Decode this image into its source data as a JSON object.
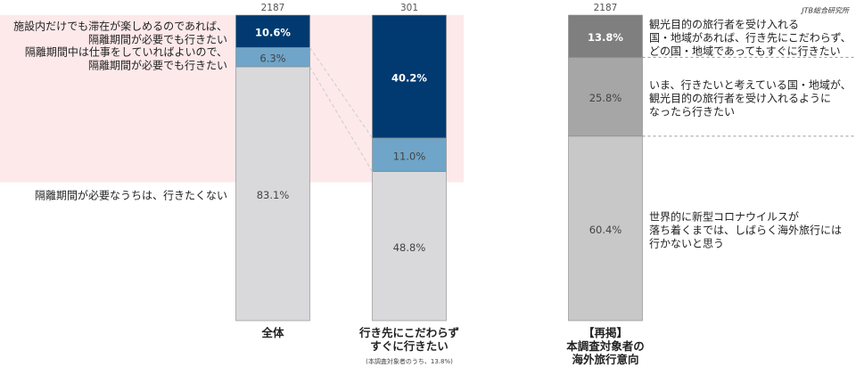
{
  "annotation": "JTB総合研究所",
  "chart_data": [
    {
      "type": "bar",
      "stacked": true,
      "categories": [
        "全体",
        "行き先にこだわらず\nすぐに行きたい"
      ],
      "category_notes": [
        null,
        "(本調査対象者のうち、13.8%)"
      ],
      "n": [
        2187,
        301
      ],
      "ylim": [
        0,
        100
      ],
      "series": [
        {
          "name": "隔離期間が必要なうちは、行きたくない",
          "color": "#d9d9db",
          "values": [
            83.1,
            48.8
          ],
          "value_labels": [
            "83.1%",
            "48.8%"
          ]
        },
        {
          "name": "隔離期間中は仕事をしていればよいので、\n隔離期間が必要でも行きたい",
          "color": "#6fa5c8",
          "values": [
            6.3,
            11.0
          ],
          "value_labels": [
            "6.3%",
            "11.0%"
          ]
        },
        {
          "name": "施設内だけでも滞在が楽しめるのであれば、\n隔離期間が必要でも行きたい",
          "color": "#003a70",
          "values": [
            10.6,
            40.2
          ],
          "value_labels": [
            "10.6%",
            "40.2%"
          ]
        }
      ]
    },
    {
      "type": "bar",
      "stacked": true,
      "categories": [
        "【再掲】\n本調査対象者の\n海外旅行意向"
      ],
      "n": [
        2187
      ],
      "ylim": [
        0,
        100
      ],
      "series": [
        {
          "name": "世界的に新型コロナウイルスが\n落ち着くまでは、しばらく海外旅行には\n行かないと思う",
          "color": "#c8c8c8",
          "values": [
            60.4
          ],
          "value_labels": [
            "60.4%"
          ]
        },
        {
          "name": "いま、行きたいと考えている国・地域が、\n観光目的の旅行者を受け入れるように\nなったら行きたい",
          "color": "#a6a6a6",
          "values": [
            25.8
          ],
          "value_labels": [
            "25.8%"
          ]
        },
        {
          "name": "観光目的の旅行者を受け入れる\n国・地域があれば、行き先にこだわらず、\nどの国・地域であってもすぐに行きたい",
          "color": "#7f7f7f",
          "values": [
            13.8
          ],
          "value_labels": [
            "13.8%"
          ]
        }
      ]
    }
  ]
}
